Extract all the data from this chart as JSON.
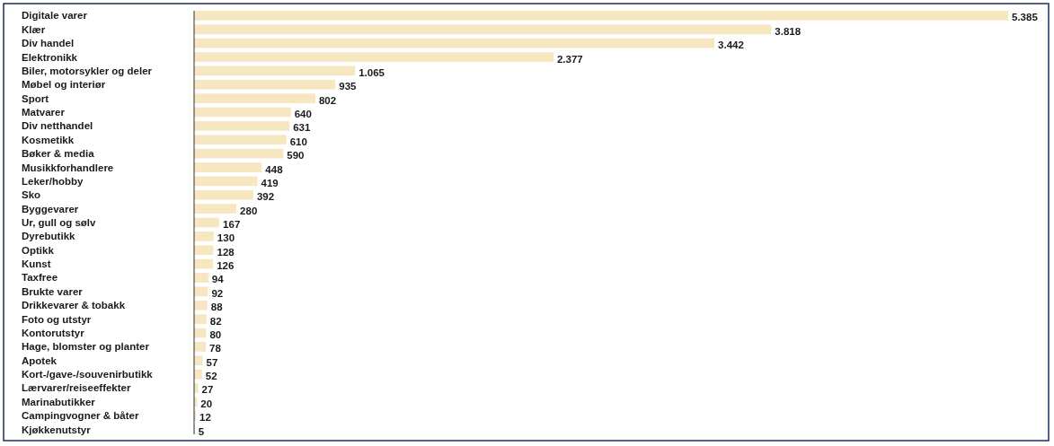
{
  "chart_data": {
    "type": "bar",
    "orientation": "horizontal",
    "color": "#f7e7c1",
    "categories": [
      "Digitale varer",
      "Klær",
      "Div handel",
      "Elektronikk",
      "Biler, motorsykler og deler",
      "Møbel og interiør",
      "Sport",
      "Matvarer",
      "Div netthandel",
      "Kosmetikk",
      "Bøker & media",
      "Musikkforhandlere",
      "Leker/hobby",
      "Sko",
      "Byggevarer",
      "Ur, gull og sølv",
      "Dyrebutikk",
      "Optikk",
      "Kunst",
      "Taxfree",
      "Brukte varer",
      "Drikkevarer & tobakk",
      "Foto og utstyr",
      "Kontorutstyr",
      "Hage, blomster og planter",
      "Apotek",
      "Kort-/gave-/souvenirbutikk",
      "Lærvarer/reiseeffekter",
      "Marinabutikker",
      "Campingvogner & båter",
      "Kjøkkenutstyr"
    ],
    "values": [
      5385,
      3818,
      3442,
      2377,
      1065,
      935,
      802,
      640,
      631,
      610,
      590,
      448,
      419,
      392,
      280,
      167,
      130,
      128,
      126,
      94,
      92,
      88,
      82,
      80,
      78,
      57,
      52,
      27,
      20,
      12,
      5
    ],
    "value_labels": [
      "5.385",
      "3.818",
      "3.442",
      "2.377",
      "1.065",
      "935",
      "802",
      "640",
      "631",
      "610",
      "590",
      "448",
      "419",
      "392",
      "280",
      "167",
      "130",
      "128",
      "126",
      "94",
      "92",
      "88",
      "82",
      "80",
      "78",
      "57",
      "52",
      "27",
      "20",
      "12",
      "5"
    ]
  }
}
